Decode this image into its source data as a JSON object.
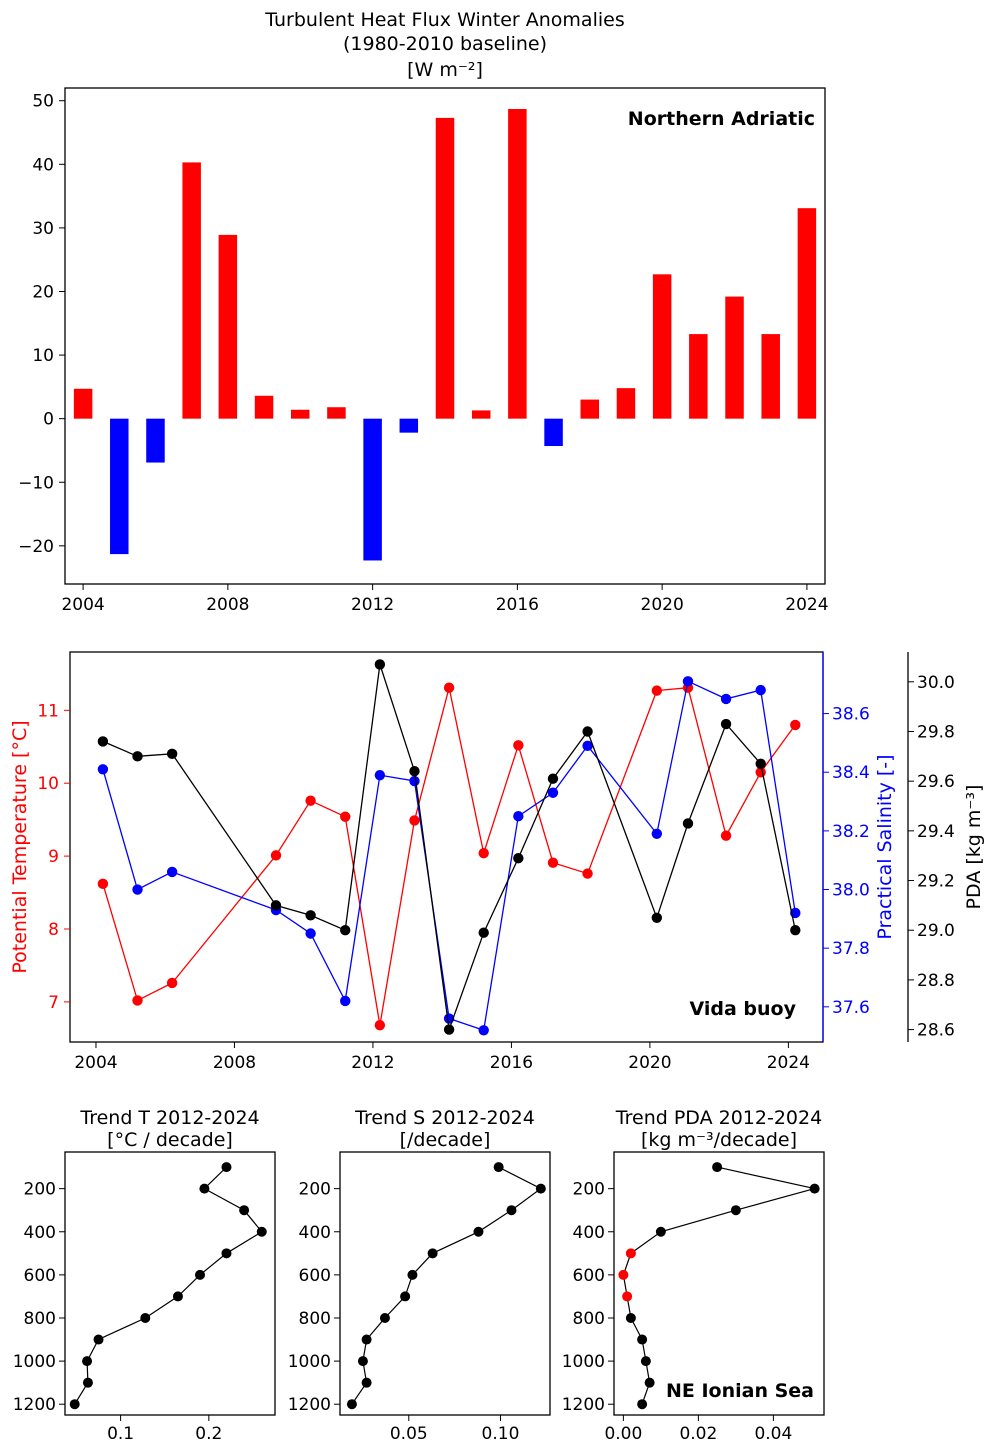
{
  "chart_data": [
    {
      "type": "bar",
      "title": [
        "Turbulent Heat Flux Winter Anomalies",
        "(1980-2010 baseline)",
        "[W m⁻²]"
      ],
      "annotation": "Northern Adriatic",
      "x": [
        2004,
        2005,
        2006,
        2007,
        2008,
        2009,
        2010,
        2011,
        2012,
        2013,
        2014,
        2015,
        2016,
        2017,
        2018,
        2019,
        2020,
        2021,
        2022,
        2023,
        2024
      ],
      "values": [
        4.7,
        -21.3,
        -6.9,
        40.3,
        28.9,
        3.6,
        1.4,
        1.8,
        -22.3,
        -2.2,
        47.3,
        1.3,
        48.7,
        -4.3,
        3.0,
        4.8,
        22.7,
        13.3,
        19.2,
        13.3,
        33.1
      ],
      "colors": {
        "positive": "#ff0000",
        "negative": "#0000ff"
      },
      "xlim": [
        2003.5,
        2024.5
      ],
      "ylim": [
        -26,
        52
      ],
      "xticks": [
        "2004",
        "2008",
        "2012",
        "2016",
        "2020",
        "2024"
      ],
      "yticks": [
        "50",
        "40",
        "30",
        "20",
        "10",
        "0",
        "−10",
        "−20"
      ]
    },
    {
      "type": "line",
      "annotation": "Vida buoy",
      "xlim": [
        2003.25,
        2025.0
      ],
      "xticks": [
        "2004",
        "2008",
        "2012",
        "2016",
        "2020",
        "2024"
      ],
      "series": [
        {
          "name": "Potential Temperature [°C]",
          "color": "#ff0000",
          "axis": "left",
          "ylim": [
            6.45,
            11.8
          ],
          "yticks": [
            "7",
            "8",
            "9",
            "10",
            "11"
          ],
          "x": [
            2004.2,
            2005.2,
            2006.2,
            2009.2,
            2010.2,
            2011.2,
            2012.2,
            2013.2,
            2014.2,
            2015.2,
            2016.2,
            2017.2,
            2018.2,
            2020.2,
            2021.1,
            2022.2,
            2023.2,
            2024.2
          ],
          "y": [
            8.62,
            7.02,
            7.26,
            9.01,
            9.76,
            9.54,
            6.68,
            9.49,
            11.31,
            9.04,
            10.52,
            8.91,
            8.76,
            11.27,
            11.31,
            9.28,
            10.15,
            10.8
          ]
        },
        {
          "name": "Practical Salinity [-]",
          "color": "#0000ff",
          "axis": "right1",
          "ylim": [
            37.48,
            38.81
          ],
          "yticks": [
            "37.6",
            "37.8",
            "38.0",
            "38.2",
            "38.4",
            "38.6"
          ],
          "x": [
            2004.2,
            2005.2,
            2006.2,
            2009.2,
            2010.2,
            2011.2,
            2012.2,
            2013.2,
            2014.2,
            2015.2,
            2016.2,
            2017.2,
            2018.2,
            2020.2,
            2021.1,
            2022.2,
            2023.2,
            2024.2
          ],
          "y": [
            38.41,
            38.0,
            38.06,
            37.93,
            37.85,
            37.62,
            38.39,
            38.37,
            37.56,
            37.52,
            38.25,
            38.33,
            38.49,
            38.19,
            38.71,
            38.65,
            38.68,
            37.92
          ]
        },
        {
          "name": "PDA [kg m⁻³]",
          "color": "#000000",
          "axis": "right2",
          "ylim": [
            28.55,
            30.12
          ],
          "yticks": [
            "28.6",
            "28.8",
            "29.0",
            "29.2",
            "29.4",
            "29.6",
            "29.8",
            "30.0"
          ],
          "x": [
            2004.2,
            2005.2,
            2006.2,
            2009.2,
            2010.2,
            2011.2,
            2012.2,
            2013.2,
            2014.2,
            2015.2,
            2016.2,
            2017.2,
            2018.2,
            2020.2,
            2021.1,
            2022.2,
            2023.2,
            2024.2
          ],
          "y": [
            29.76,
            29.7,
            29.71,
            29.1,
            29.06,
            29.0,
            30.07,
            29.64,
            28.6,
            28.99,
            29.29,
            29.61,
            29.8,
            29.05,
            29.43,
            29.83,
            29.67,
            29.0
          ]
        }
      ]
    },
    {
      "type": "line",
      "title": [
        "Trend T 2012-2024",
        "[°C / decade]"
      ],
      "depth": [
        100,
        200,
        300,
        400,
        500,
        600,
        700,
        800,
        900,
        1000,
        1100,
        1200
      ],
      "values": [
        0.22,
        0.195,
        0.24,
        0.26,
        0.22,
        0.19,
        0.165,
        0.128,
        0.075,
        0.062,
        0.063,
        0.048
      ],
      "point_colors": [
        "#000000",
        "#000000",
        "#000000",
        "#000000",
        "#000000",
        "#000000",
        "#000000",
        "#000000",
        "#000000",
        "#000000",
        "#000000",
        "#000000"
      ],
      "xlim": [
        0.037,
        0.275
      ],
      "ylim": [
        1250,
        30
      ],
      "xticks": [
        "0.1",
        "0.2"
      ],
      "yticks": [
        "200",
        "400",
        "600",
        "800",
        "1000",
        "1200"
      ]
    },
    {
      "type": "line",
      "title": [
        "Trend S 2012-2024",
        "[/decade]"
      ],
      "depth": [
        100,
        200,
        300,
        400,
        500,
        600,
        700,
        800,
        900,
        1000,
        1100,
        1200
      ],
      "values": [
        0.099,
        0.122,
        0.106,
        0.088,
        0.063,
        0.052,
        0.048,
        0.037,
        0.027,
        0.025,
        0.027,
        0.019
      ],
      "point_colors": [
        "#000000",
        "#000000",
        "#000000",
        "#000000",
        "#000000",
        "#000000",
        "#000000",
        "#000000",
        "#000000",
        "#000000",
        "#000000",
        "#000000"
      ],
      "xlim": [
        0.0125,
        0.127
      ],
      "ylim": [
        1250,
        30
      ],
      "xticks": [
        "0.05",
        "0.10"
      ],
      "yticks": [
        "200",
        "400",
        "600",
        "800",
        "1000",
        "1200"
      ]
    },
    {
      "type": "line",
      "title": [
        "Trend PDA 2012-2024",
        "[kg m⁻³/decade]"
      ],
      "annotation": "NE Ionian Sea",
      "depth": [
        100,
        200,
        300,
        400,
        500,
        600,
        700,
        800,
        900,
        1000,
        1100,
        1200
      ],
      "values": [
        0.025,
        0.051,
        0.03,
        0.01,
        0.002,
        0.0,
        0.001,
        0.002,
        0.005,
        0.006,
        0.007,
        0.005
      ],
      "point_colors": [
        "#000000",
        "#000000",
        "#000000",
        "#000000",
        "#ff0000",
        "#ff0000",
        "#ff0000",
        "#000000",
        "#000000",
        "#000000",
        "#000000",
        "#000000"
      ],
      "xlim": [
        -0.0025,
        0.0535
      ],
      "ylim": [
        1250,
        30
      ],
      "xticks": [
        "0.00",
        "0.02",
        "0.04"
      ],
      "yticks": [
        "200",
        "400",
        "600",
        "800",
        "1000",
        "1200"
      ]
    }
  ]
}
